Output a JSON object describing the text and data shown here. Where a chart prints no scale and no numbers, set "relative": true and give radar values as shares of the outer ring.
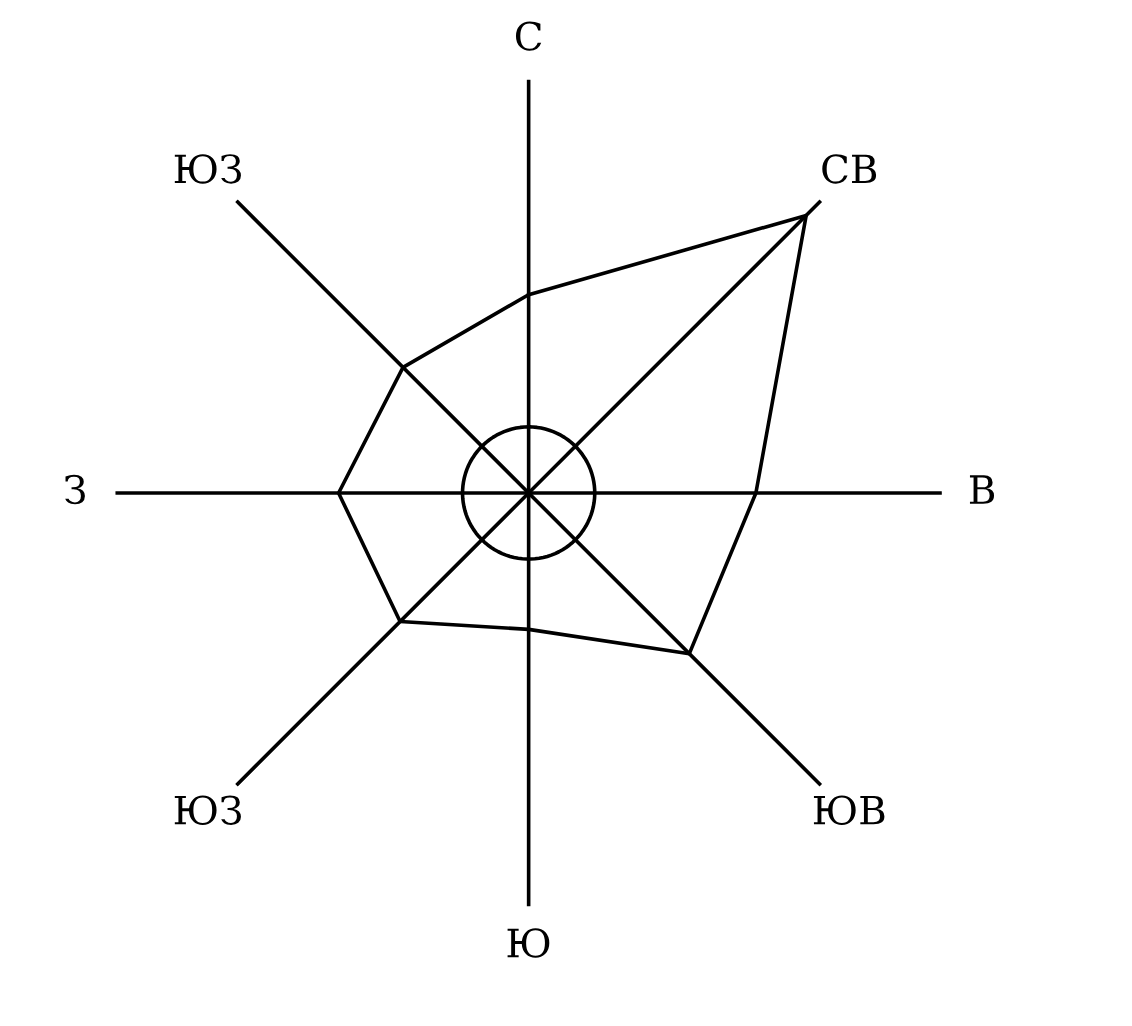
{
  "chart_data": {
    "type": "radar",
    "relative": true,
    "marker": "none",
    "line_style": "solid",
    "categories": [
      "С",
      "СВ",
      "В",
      "ЮВ",
      "Ю",
      "ЮЗ",
      "З",
      "ЮЗ"
    ],
    "series": [
      {
        "color": "#000000",
        "values": [
          0.48,
          0.95,
          0.55,
          0.55,
          0.33,
          0.44,
          0.46,
          0.43
        ]
      }
    ]
  }
}
